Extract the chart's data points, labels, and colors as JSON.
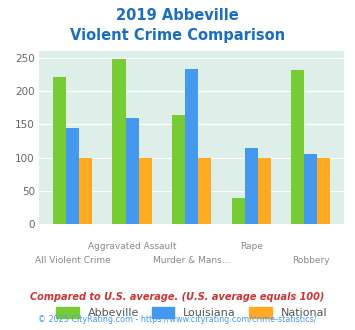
{
  "title_line1": "2019 Abbeville",
  "title_line2": "Violent Crime Comparison",
  "categories": [
    "All Violent Crime",
    "Aggravated Assault",
    "Murder & Mans...",
    "Rape",
    "Robbery"
  ],
  "xtick_top": [
    "",
    "Aggravated Assault",
    "",
    "Rape",
    ""
  ],
  "xtick_bottom": [
    "All Violent Crime",
    "",
    "Murder & Mans...",
    "",
    "Robbery"
  ],
  "abbeville": [
    221,
    248,
    164,
    40,
    232
  ],
  "louisiana": [
    145,
    160,
    233,
    115,
    106
  ],
  "national": [
    100,
    100,
    100,
    100,
    100
  ],
  "color_abbeville": "#77cc33",
  "color_louisiana": "#4499ee",
  "color_national": "#ffaa22",
  "color_title": "#1a6ec0",
  "color_bg_chart": "#deeee8",
  "color_grid": "#ffffff",
  "ylim": [
    0,
    260
  ],
  "yticks": [
    0,
    50,
    100,
    150,
    200,
    250
  ],
  "footnote1": "Compared to U.S. average. (U.S. average equals 100)",
  "footnote2": "© 2025 CityRating.com - https://www.cityrating.com/crime-statistics/",
  "footnote1_color": "#cc3333",
  "footnote2_color": "#4499ee",
  "bar_width": 0.22,
  "legend_labels": [
    "Abbeville",
    "Louisiana",
    "National"
  ]
}
